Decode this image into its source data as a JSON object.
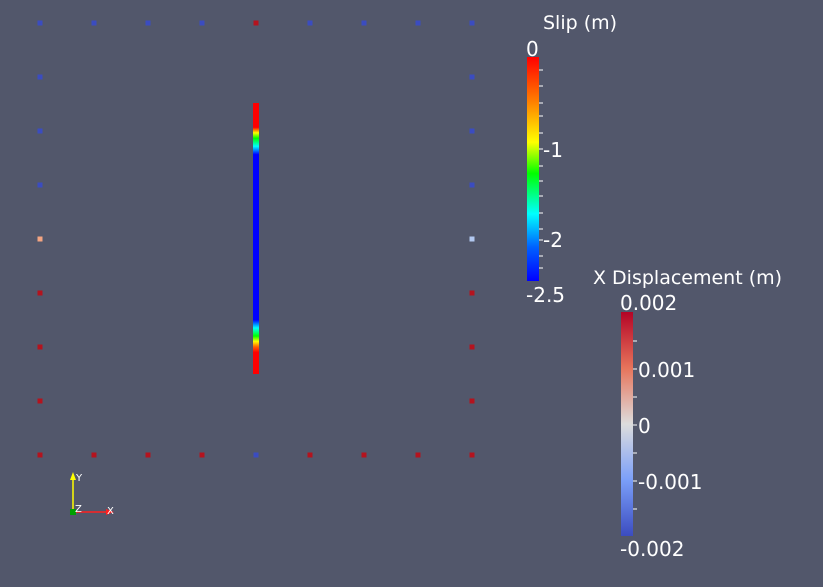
{
  "colors": {
    "background": "#52576b",
    "point_red": "#b4131e",
    "point_blue": "#3b4cc0",
    "point_salmon": "#f4a582",
    "point_lightblue": "#b2c8f0"
  },
  "scene": {
    "points": [
      {
        "id": "p-top-1",
        "value": "blue"
      },
      {
        "id": "p-top-2",
        "value": "blue"
      },
      {
        "id": "p-top-3",
        "value": "blue"
      },
      {
        "id": "p-top-4",
        "value": "blue"
      },
      {
        "id": "p-top-5",
        "value": "red"
      },
      {
        "id": "p-top-6",
        "value": "blue"
      },
      {
        "id": "p-top-7",
        "value": "blue"
      },
      {
        "id": "p-top-8",
        "value": "blue"
      },
      {
        "id": "p-top-9",
        "value": "blue"
      },
      {
        "id": "p-left-2",
        "value": "blue"
      },
      {
        "id": "p-left-3",
        "value": "blue"
      },
      {
        "id": "p-left-4",
        "value": "blue"
      },
      {
        "id": "p-left-5",
        "value": "salmon"
      },
      {
        "id": "p-left-6",
        "value": "red"
      },
      {
        "id": "p-left-7",
        "value": "red"
      },
      {
        "id": "p-left-8",
        "value": "red"
      },
      {
        "id": "p-right-2",
        "value": "blue"
      },
      {
        "id": "p-right-3",
        "value": "blue"
      },
      {
        "id": "p-right-4",
        "value": "blue"
      },
      {
        "id": "p-right-5",
        "value": "lightblue"
      },
      {
        "id": "p-right-6",
        "value": "red"
      },
      {
        "id": "p-right-7",
        "value": "red"
      },
      {
        "id": "p-right-8",
        "value": "red"
      },
      {
        "id": "p-bot-1",
        "value": "red"
      },
      {
        "id": "p-bot-2",
        "value": "red"
      },
      {
        "id": "p-bot-3",
        "value": "red"
      },
      {
        "id": "p-bot-4",
        "value": "red"
      },
      {
        "id": "p-bot-5",
        "value": "blue"
      },
      {
        "id": "p-bot-6",
        "value": "red"
      },
      {
        "id": "p-bot-7",
        "value": "red"
      },
      {
        "id": "p-bot-8",
        "value": "red"
      },
      {
        "id": "p-bot-9",
        "value": "red"
      }
    ]
  },
  "slip_legend": {
    "title": "Slip (m)",
    "labels": [
      "0",
      "-1",
      "-2",
      "-2.5"
    ],
    "colormap": "rainbow"
  },
  "xdisp_legend": {
    "title": "X Displacement (m)",
    "labels": [
      "0.002",
      "0.001",
      "0",
      "-0.001",
      "-0.002"
    ],
    "colormap": "cool-to-warm"
  },
  "axes": {
    "y_label": "Y",
    "z_label": "Z",
    "x_label": "X"
  }
}
